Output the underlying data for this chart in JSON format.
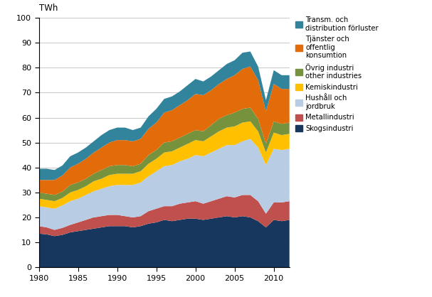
{
  "years": [
    1980,
    1981,
    1982,
    1983,
    1984,
    1985,
    1986,
    1987,
    1988,
    1989,
    1990,
    1991,
    1992,
    1993,
    1994,
    1995,
    1996,
    1997,
    1998,
    1999,
    2000,
    2001,
    2002,
    2003,
    2004,
    2005,
    2006,
    2007,
    2008,
    2009,
    2010,
    2011,
    2012
  ],
  "series": {
    "Skogsindustri": [
      13.5,
      13.2,
      12.5,
      13.0,
      14.0,
      14.5,
      15.0,
      15.5,
      16.0,
      16.5,
      16.5,
      16.5,
      16.0,
      16.5,
      17.5,
      18.0,
      19.0,
      18.5,
      19.0,
      19.5,
      19.5,
      19.0,
      19.5,
      20.0,
      20.5,
      20.0,
      20.5,
      20.0,
      18.5,
      16.0,
      19.0,
      18.5,
      19.0
    ],
    "Metallindustri": [
      3.0,
      2.8,
      2.5,
      2.8,
      3.0,
      3.5,
      4.0,
      4.5,
      4.5,
      4.5,
      4.5,
      4.0,
      4.0,
      4.0,
      5.0,
      5.5,
      5.5,
      6.0,
      6.5,
      6.5,
      7.0,
      6.5,
      7.0,
      7.5,
      8.0,
      8.0,
      8.5,
      9.0,
      8.0,
      5.5,
      7.0,
      7.5,
      7.5
    ],
    "Hushall_och_jordbruk": [
      8.0,
      8.0,
      8.5,
      9.0,
      9.5,
      9.5,
      10.0,
      10.5,
      11.0,
      11.5,
      12.0,
      12.5,
      13.0,
      13.5,
      14.0,
      15.0,
      16.0,
      16.5,
      17.0,
      17.5,
      18.5,
      19.0,
      19.5,
      20.0,
      20.5,
      21.0,
      21.5,
      22.5,
      21.5,
      19.5,
      21.5,
      21.0,
      21.0
    ],
    "Kemiskindustri": [
      3.0,
      3.0,
      3.0,
      3.0,
      3.5,
      3.5,
      3.5,
      4.0,
      4.0,
      4.5,
      4.5,
      4.5,
      4.5,
      4.5,
      5.0,
      5.0,
      5.5,
      5.5,
      5.5,
      6.0,
      6.0,
      6.0,
      6.5,
      7.0,
      7.0,
      7.5,
      7.5,
      7.0,
      6.5,
      5.0,
      6.5,
      6.0,
      6.0
    ],
    "Ovrig_industri": [
      2.5,
      2.5,
      2.5,
      2.5,
      3.0,
      3.0,
      3.0,
      3.0,
      3.5,
      3.5,
      3.5,
      3.5,
      3.0,
      3.0,
      3.5,
      3.5,
      4.0,
      4.0,
      4.0,
      4.0,
      4.0,
      4.0,
      4.5,
      5.0,
      5.0,
      5.5,
      5.5,
      5.5,
      5.0,
      3.5,
      4.5,
      4.5,
      4.5
    ],
    "Tjanster_och_offentlig": [
      5.0,
      5.5,
      6.0,
      6.5,
      7.0,
      7.5,
      8.0,
      8.5,
      9.0,
      9.5,
      10.0,
      10.0,
      10.0,
      10.0,
      10.5,
      11.0,
      12.0,
      12.5,
      13.0,
      13.5,
      14.5,
      14.5,
      14.0,
      14.0,
      14.5,
      15.0,
      16.0,
      16.5,
      15.5,
      13.0,
      15.0,
      14.0,
      13.5
    ],
    "Transm_distribution": [
      4.5,
      4.5,
      4.0,
      4.0,
      4.5,
      4.5,
      4.5,
      4.5,
      5.0,
      5.0,
      5.0,
      5.0,
      4.5,
      4.5,
      5.0,
      5.5,
      5.5,
      5.5,
      5.5,
      6.0,
      6.0,
      5.5,
      5.5,
      5.5,
      6.0,
      6.0,
      6.5,
      6.0,
      5.5,
      4.5,
      5.5,
      5.5,
      5.5
    ]
  },
  "colors": {
    "Skogsindustri": "#17375e",
    "Metallindustri": "#c0504d",
    "Hushall_och_jordbruk": "#b8cce4",
    "Kemiskindustri": "#ffc000",
    "Ovrig_industri": "#76923c",
    "Tjanster_och_offentlig": "#e36c0a",
    "Transm_distribution": "#31849b"
  },
  "legend_labels": {
    "Transm_distribution": "Transm. och\ndistribution förluster",
    "Tjanster_och_offentlig": "Tjänster och\noffentlig\nkonsumtion",
    "Ovrig_industri": "Övrig industri\nother industries",
    "Kemiskindustri": "Kemiskindustri",
    "Hushall_och_jordbruk": "Hushåll och\njordbruk",
    "Metallindustri": "Metallindustri",
    "Skogsindustri": "Skogsindustri"
  },
  "ylabel": "TWh",
  "ylim": [
    0,
    100
  ],
  "yticks": [
    0,
    10,
    20,
    30,
    40,
    50,
    60,
    70,
    80,
    90,
    100
  ],
  "xlim": [
    1980,
    2012
  ],
  "xticks": [
    1980,
    1985,
    1990,
    1995,
    2000,
    2005,
    2010
  ],
  "figsize": [
    6.07,
    4.18
  ],
  "dpi": 100
}
